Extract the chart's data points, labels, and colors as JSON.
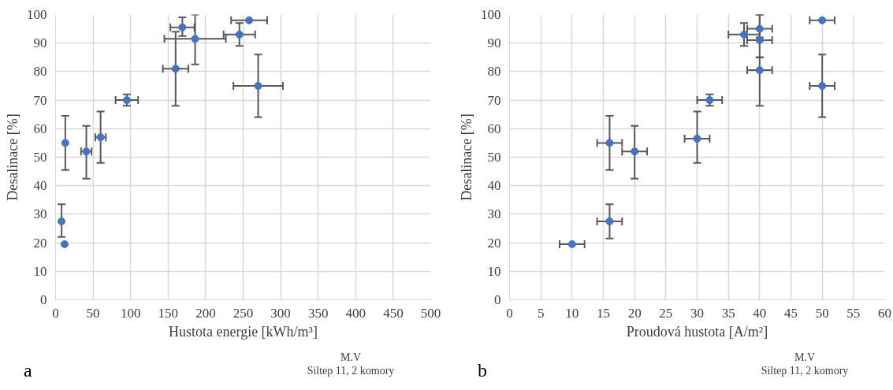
{
  "chart_data": [
    {
      "type": "scatter",
      "xlabel": "Hustota energie [kWh/m³]",
      "ylabel": "Desalinace [%]",
      "xlim": [
        0,
        500
      ],
      "ylim": [
        0,
        100
      ],
      "xticks": [
        0,
        50,
        100,
        150,
        200,
        250,
        300,
        350,
        400,
        450,
        500
      ],
      "yticks": [
        0,
        10,
        20,
        30,
        40,
        50,
        60,
        70,
        80,
        90,
        100
      ],
      "grid": true,
      "marker": "circle",
      "series": [
        {
          "color": "#4472c4",
          "x": [
            8,
            12,
            13,
            41,
            60,
            95,
            160,
            169,
            186,
            245,
            258,
            270
          ],
          "values": [
            27.5,
            19.5,
            55,
            52,
            57,
            70,
            81,
            95.5,
            91.5,
            93,
            98,
            75
          ],
          "errors": [
            [
              22,
              33.5
            ],
            null,
            [
              45.5,
              64.5
            ],
            [
              42.5,
              61
            ],
            [
              48,
              66
            ],
            [
              68,
              72
            ],
            [
              68,
              94
            ],
            [
              92.5,
              99
            ],
            [
              82.5,
              100
            ],
            [
              89,
              97
            ],
            null,
            [
              64,
              86
            ]
          ],
          "xerrors": [
            null,
            null,
            null,
            7,
            7,
            15,
            17,
            16,
            41,
            21,
            24,
            33
          ]
        }
      ],
      "annotations": [
        "a",
        "M.V",
        "Siltep 11, 2 komory"
      ]
    },
    {
      "type": "scatter",
      "xlabel": "Proudová hustota [A/m²]",
      "ylabel": "Desalinace [%]",
      "xlim": [
        0,
        60
      ],
      "ylim": [
        0,
        100
      ],
      "xticks": [
        0,
        5,
        10,
        15,
        20,
        25,
        30,
        35,
        40,
        45,
        50,
        55,
        60
      ],
      "yticks": [
        0,
        10,
        20,
        30,
        40,
        50,
        60,
        70,
        80,
        90,
        100
      ],
      "grid": true,
      "marker": "circle",
      "series": [
        {
          "color": "#4472c4",
          "x": [
            10,
            16,
            16,
            20,
            30,
            32,
            37.5,
            40,
            40,
            40,
            50,
            50
          ],
          "values": [
            19.5,
            27.5,
            55,
            52,
            56.5,
            70,
            93,
            95,
            91,
            80.5,
            98,
            75
          ],
          "errors": [
            null,
            [
              21.5,
              33.5
            ],
            [
              45.5,
              64.5
            ],
            [
              42.5,
              61
            ],
            [
              48,
              66
            ],
            [
              68,
              72
            ],
            [
              89,
              97
            ],
            [
              92,
              100
            ],
            [
              85,
              100
            ],
            [
              68,
              85
            ],
            null,
            [
              64,
              86
            ]
          ],
          "xerrors": [
            2,
            2,
            2,
            2,
            2,
            2,
            2.5,
            2,
            2,
            2,
            2,
            2
          ]
        }
      ],
      "annotations": [
        "b",
        "M.V",
        "Siltep 11, 2 komory"
      ]
    }
  ]
}
